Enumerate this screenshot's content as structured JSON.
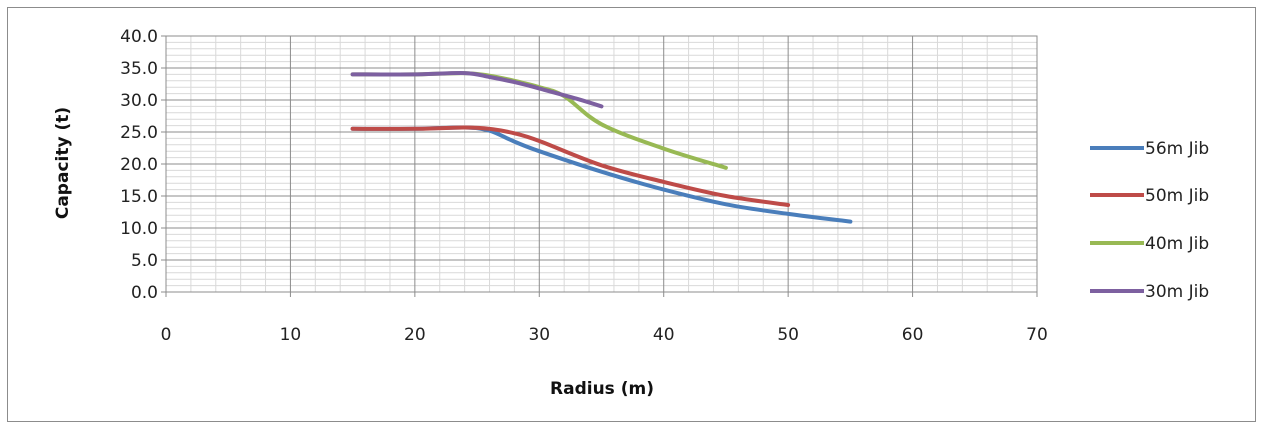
{
  "chart_data": {
    "type": "line",
    "xlabel": "Radius (m)",
    "ylabel": "Capacity (t)",
    "xlim": [
      0,
      70
    ],
    "ylim": [
      0,
      40
    ],
    "x_ticks": [
      "0",
      "10",
      "20",
      "30",
      "40",
      "50",
      "60",
      "70"
    ],
    "y_ticks": [
      "0.0",
      "5.0",
      "10.0",
      "15.0",
      "20.0",
      "25.0",
      "30.0",
      "35.0",
      "40.0"
    ],
    "grid": "on (major and minor)",
    "legend_position": "right",
    "series": [
      {
        "name": "56m Jib",
        "color": "#4a7ebb",
        "points": [
          [
            15,
            25.5
          ],
          [
            20,
            25.5
          ],
          [
            24,
            25.7
          ],
          [
            26,
            25.2
          ],
          [
            28,
            23.5
          ],
          [
            30,
            22.0
          ],
          [
            35,
            18.8
          ],
          [
            40,
            16.0
          ],
          [
            45,
            13.7
          ],
          [
            50,
            12.2
          ],
          [
            55,
            11.0
          ]
        ]
      },
      {
        "name": "50m Jib",
        "color": "#be4b48",
        "points": [
          [
            15,
            25.5
          ],
          [
            20,
            25.5
          ],
          [
            24,
            25.7
          ],
          [
            26,
            25.5
          ],
          [
            28,
            24.8
          ],
          [
            30,
            23.6
          ],
          [
            35,
            19.8
          ],
          [
            40,
            17.2
          ],
          [
            45,
            15.0
          ],
          [
            50,
            13.6
          ]
        ]
      },
      {
        "name": "40m Jib",
        "color": "#98b954",
        "points": [
          [
            15,
            34.0
          ],
          [
            20,
            34.0
          ],
          [
            24,
            34.2
          ],
          [
            26,
            33.8
          ],
          [
            28,
            33.0
          ],
          [
            30,
            32.0
          ],
          [
            32,
            30.6
          ],
          [
            35,
            26.2
          ],
          [
            40,
            22.4
          ],
          [
            45,
            19.4
          ]
        ]
      },
      {
        "name": "30m Jib",
        "color": "#7d60a0",
        "points": [
          [
            15,
            34.0
          ],
          [
            20,
            34.0
          ],
          [
            24,
            34.2
          ],
          [
            26,
            33.6
          ],
          [
            28,
            32.8
          ],
          [
            30,
            31.8
          ],
          [
            33,
            30.2
          ],
          [
            35,
            29.0
          ]
        ]
      }
    ]
  }
}
